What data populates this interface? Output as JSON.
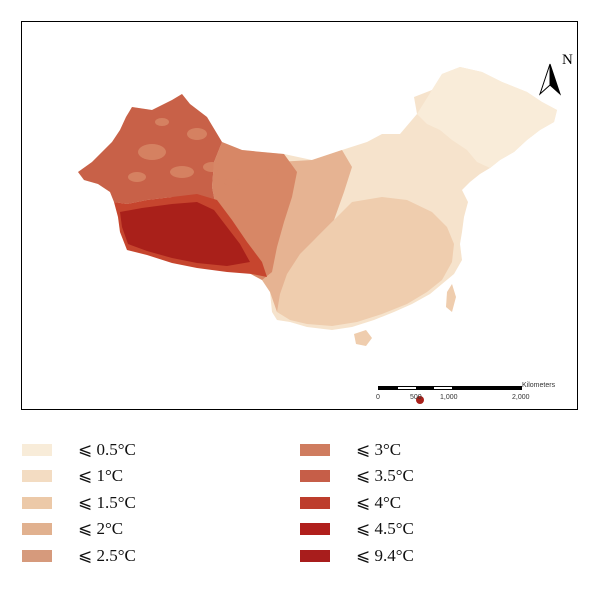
{
  "map": {
    "north_label": "N",
    "scale_bar": {
      "unit": "Kilometers",
      "ticks": [
        "0",
        "500",
        "1,000",
        "2,000"
      ]
    },
    "colors": {
      "ocean": "#ffffff",
      "east": "#f6e3cc",
      "northeast": "#f9ecd9",
      "south": "#efcdae",
      "mid": "#e6b392",
      "west_mid": "#d78766",
      "xinjiang": "#c86148",
      "tibet": "#a9201a",
      "tibet_edge": "#c6452e"
    }
  },
  "legend": {
    "items": [
      {
        "label": "⩽ 0.5°C",
        "color": "#f8ecd9"
      },
      {
        "label": "⩽ 1°C",
        "color": "#f3dcc2"
      },
      {
        "label": "⩽ 1.5°C",
        "color": "#ecc9a8"
      },
      {
        "label": "⩽ 2°C",
        "color": "#e1b18f"
      },
      {
        "label": "⩽ 2.5°C",
        "color": "#d69a7c"
      },
      {
        "label": "⩽ 3°C",
        "color": "#cf7c5f"
      },
      {
        "label": "⩽ 3.5°C",
        "color": "#c65e48"
      },
      {
        "label": "⩽ 4°C",
        "color": "#bd3d2c"
      },
      {
        "label": "⩽ 4.5°C",
        "color": "#b01f1c"
      },
      {
        "label": "⩽ 9.4°C",
        "color": "#a81d1c"
      }
    ]
  }
}
